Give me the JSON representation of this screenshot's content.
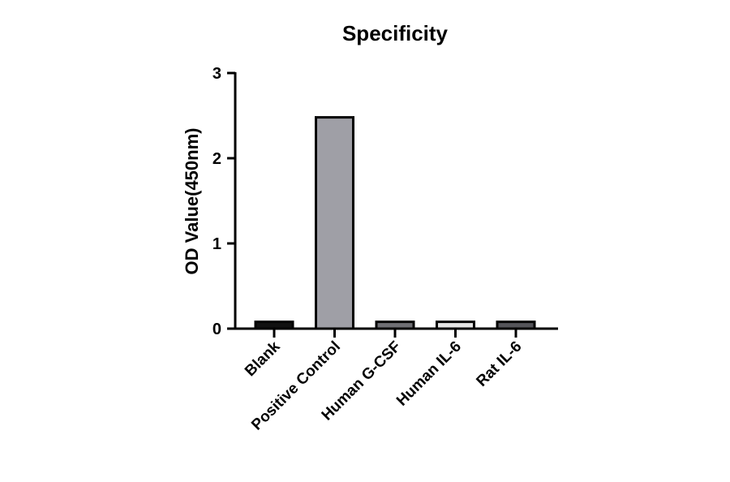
{
  "chart_data": {
    "type": "bar",
    "title": "Specificity",
    "xlabel": "",
    "ylabel": "OD Value(450nm)",
    "ylim": [
      0,
      3
    ],
    "yticks": [
      0,
      1,
      2,
      3
    ],
    "categories": [
      "Blank",
      "Positive Control",
      "Human G-CSF",
      "Human IL-6",
      "Rat IL-6"
    ],
    "values": [
      0.08,
      2.48,
      0.08,
      0.08,
      0.08
    ],
    "bar_colors": [
      "#111111",
      "#9f9fa6",
      "#6f6f74",
      "#e6e6e6",
      "#55555a"
    ],
    "grid": false,
    "legend": "none"
  }
}
